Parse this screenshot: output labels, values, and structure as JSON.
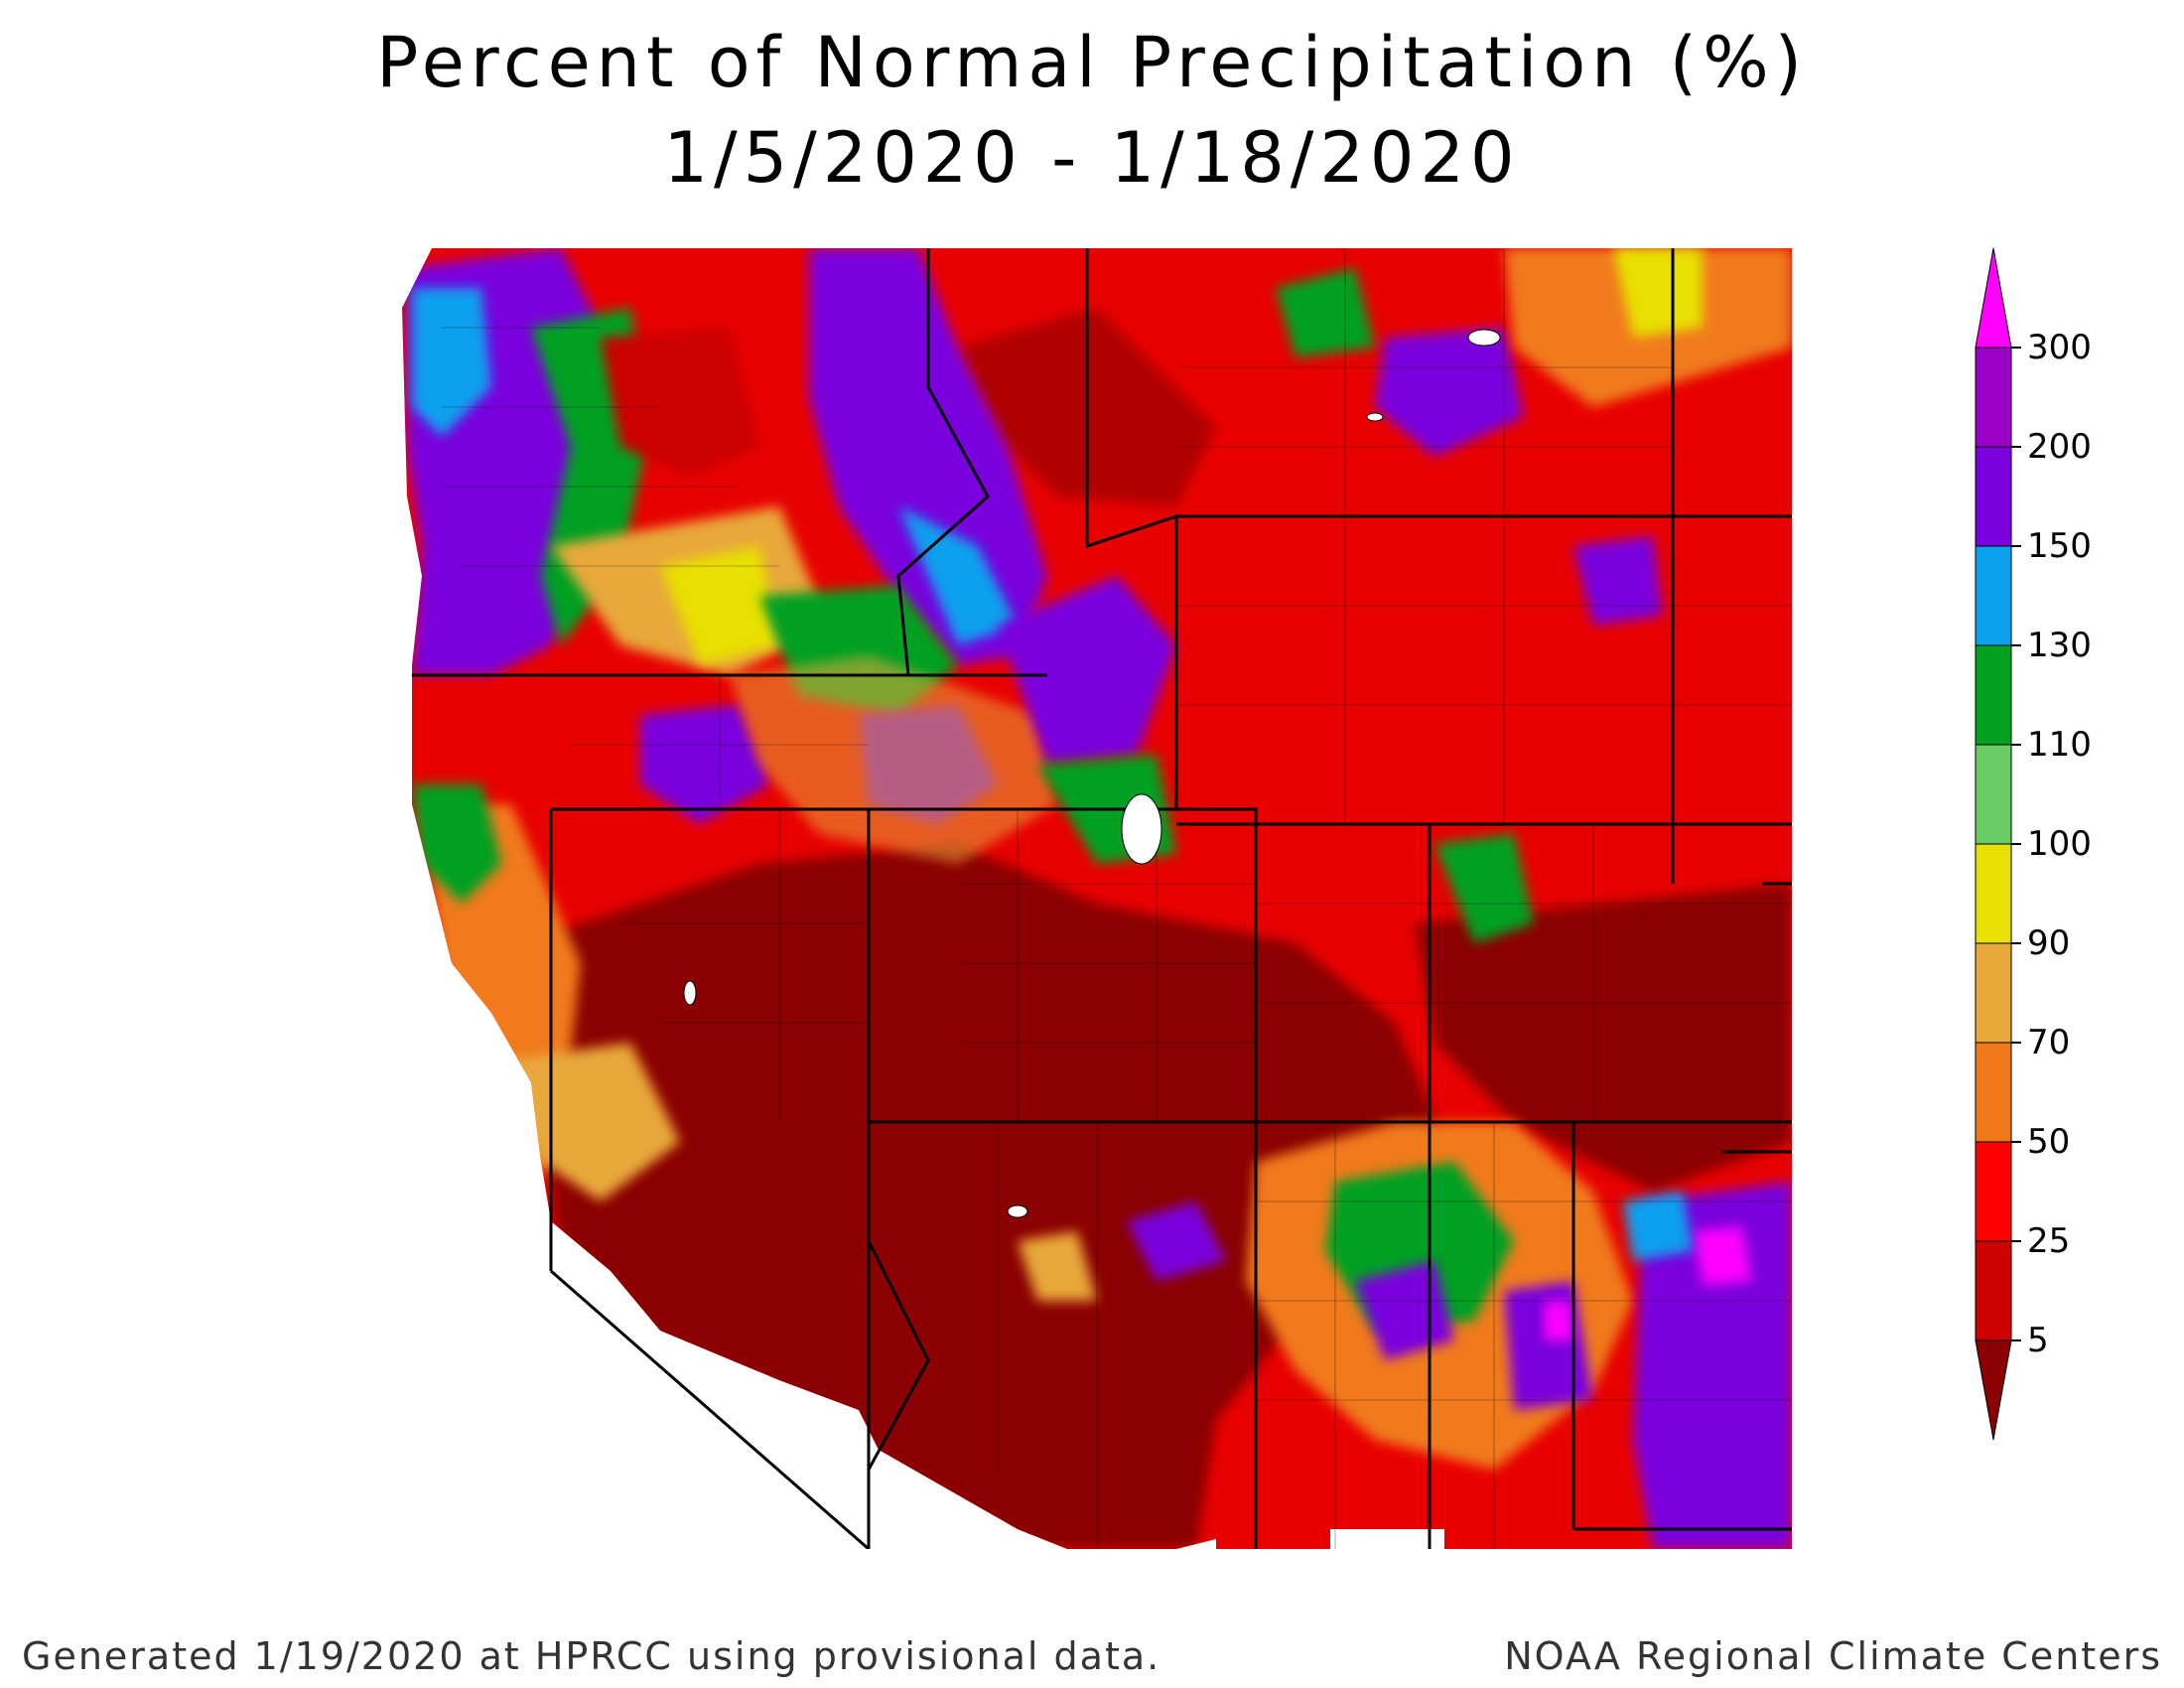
{
  "title": {
    "line1": "Percent of Normal Precipitation (%)",
    "line2": "1/5/2020 - 1/18/2020"
  },
  "map": {
    "region": "Western United States",
    "fill_colors": {
      "range_5_25": "#8b0000",
      "range_25_50": "#cc0000",
      "range_50_70": "#ff2a00",
      "range_70_90": "#f07a1a",
      "range_90_100": "#e8a83a",
      "range_100_110": "#e8e000",
      "range_110_130": "#6acc66",
      "range_130_150": "#00a020",
      "range_150_200": "#0aa0ee",
      "range_200_300": "#7a00dd",
      "range_300_plus": "#9a00c8",
      "extreme": "#ff00ff"
    }
  },
  "legend": {
    "ticks": [
      "300",
      "200",
      "150",
      "130",
      "110",
      "100",
      "90",
      "70",
      "50",
      "25",
      "5"
    ],
    "bins": [
      {
        "color": "#9a00c8"
      },
      {
        "color": "#7a00dd"
      },
      {
        "color": "#0aa0ee"
      },
      {
        "color": "#00a020"
      },
      {
        "color": "#6acc66"
      },
      {
        "color": "#e8e000"
      },
      {
        "color": "#e8a83a"
      },
      {
        "color": "#f07a1a"
      },
      {
        "color": "#ff0000"
      },
      {
        "color": "#cc0000"
      }
    ],
    "top_arrow_color": "#ff00ff",
    "bottom_arrow_color": "#8b0000"
  },
  "footer": {
    "left": "Generated 1/19/2020 at HPRCC using provisional data.",
    "right": "NOAA Regional Climate Centers"
  }
}
